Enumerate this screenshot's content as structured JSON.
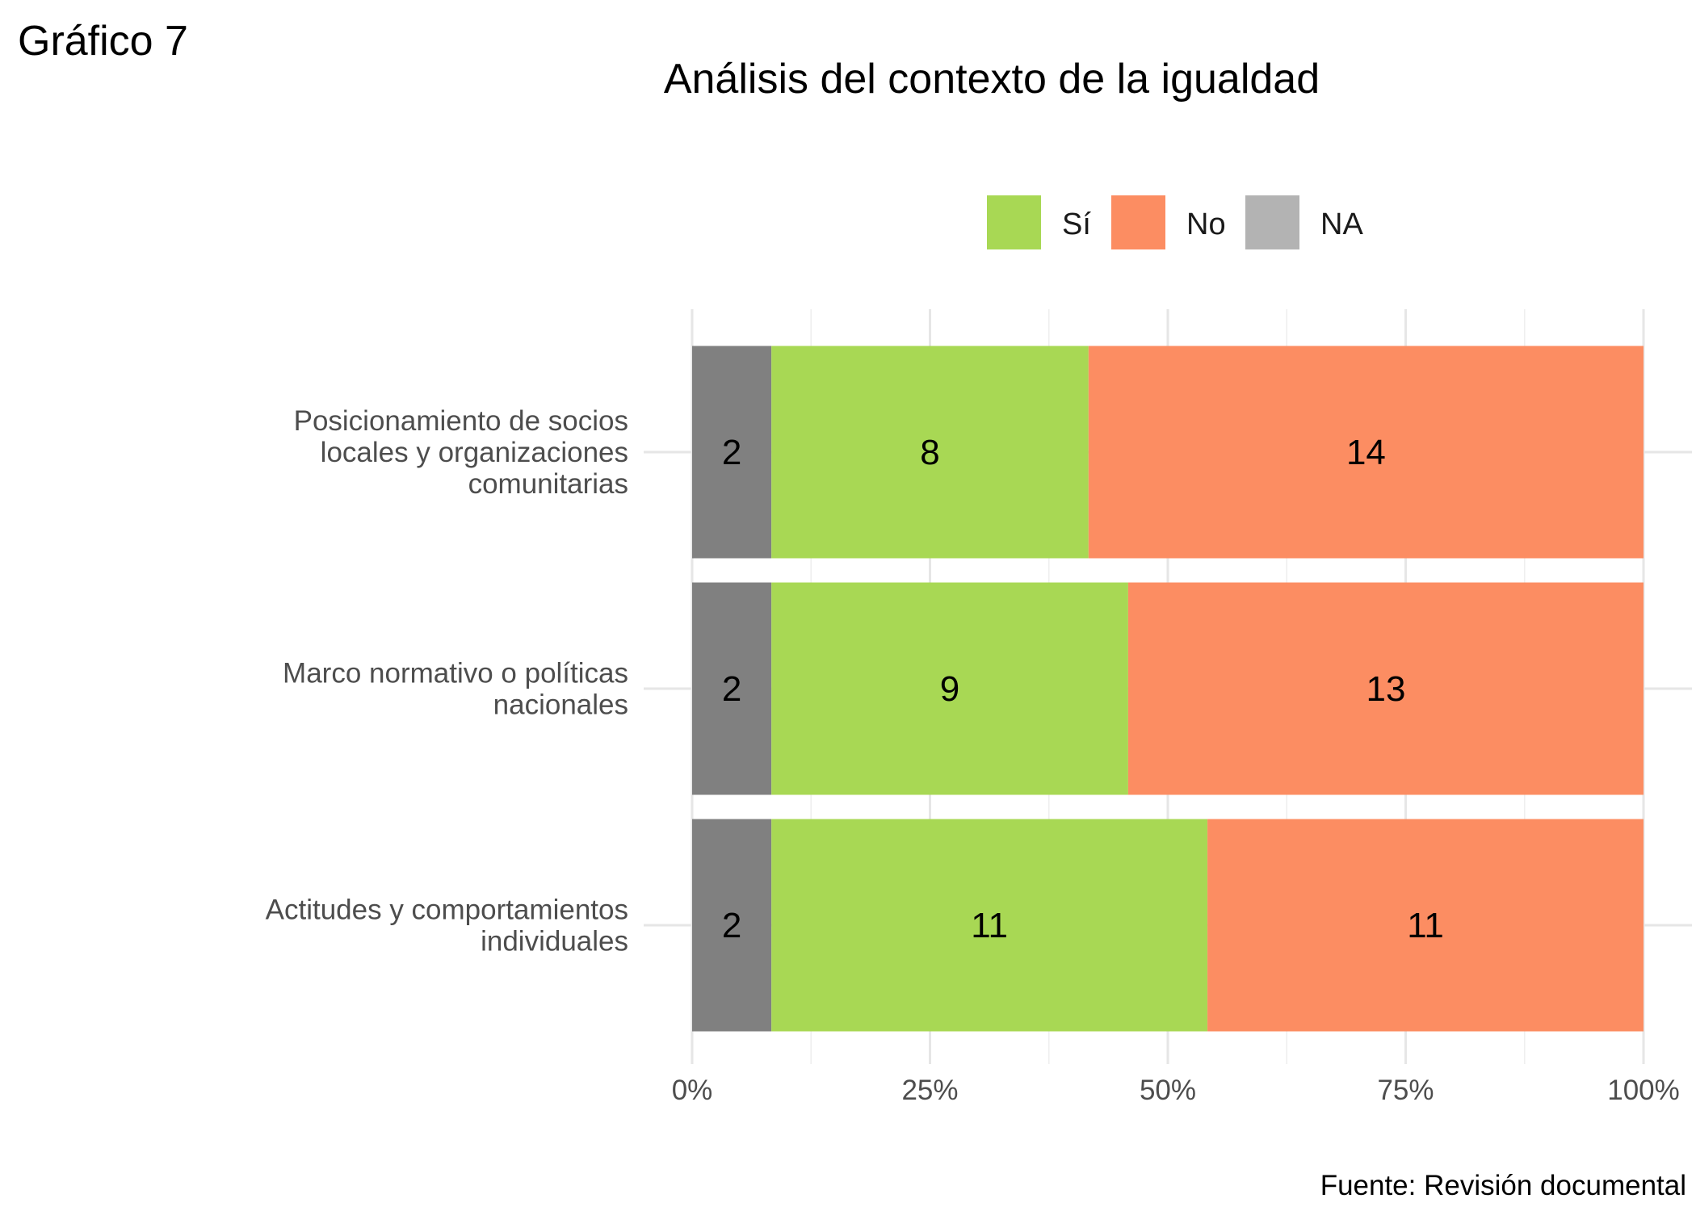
{
  "figure_label": "Gráfico 7",
  "source": "Fuente: Revisión documental",
  "chart_data": {
    "type": "bar",
    "orientation": "horizontal",
    "stacked": true,
    "normalized": true,
    "title": "Análisis del contexto de la igualdad",
    "xlabel": "",
    "ylabel": "",
    "xlim": [
      0,
      100
    ],
    "x_ticks": [
      "0%",
      "25%",
      "50%",
      "75%",
      "100%"
    ],
    "grid": true,
    "legend_position": "top-right",
    "categories": [
      "Posicionamiento de socios locales y organizaciones comunitarias",
      "Marco normativo o políticas nacionales",
      "Actitudes y comportamientos individuales"
    ],
    "category_label_lines": [
      [
        "Posicionamiento de socios",
        "locales y organizaciones",
        "comunitarias"
      ],
      [
        "Marco normativo o políticas",
        "nacionales"
      ],
      [
        "Actitudes y comportamientos",
        "individuales"
      ]
    ],
    "series": [
      {
        "name": "NA",
        "color": "#808080",
        "values": [
          2,
          2,
          2
        ]
      },
      {
        "name": "Sí",
        "color": "#a8d854",
        "values": [
          8,
          9,
          11
        ]
      },
      {
        "name": "No",
        "color": "#fc8d62",
        "values": [
          14,
          13,
          11
        ]
      }
    ],
    "legend": [
      {
        "name": "Sí",
        "color": "#a8d854"
      },
      {
        "name": "No",
        "color": "#fc8d62"
      },
      {
        "name": "NA",
        "color": "#b3b3b3"
      }
    ]
  }
}
